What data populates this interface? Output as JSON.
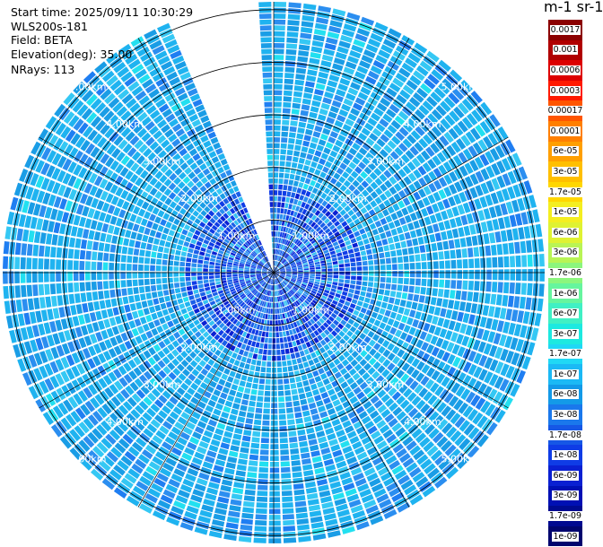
{
  "info": {
    "start_time": "Start time: 2025/09/11 10:30:29",
    "instrument": "WLS200s-181",
    "field": "Field: BETA",
    "elevation": "Elevation(deg): 35.00",
    "nrays": "NRays: 113"
  },
  "colorbar": {
    "title": "m-1 sr-1",
    "levels": [
      {
        "label": "0.0017",
        "color": "#8b0000"
      },
      {
        "label": "0.001",
        "color": "#b00000"
      },
      {
        "label": "0.0006",
        "color": "#dd0000"
      },
      {
        "label": "0.0003",
        "color": "#ff1a00"
      },
      {
        "label": "0.00017",
        "color": "#ff5500"
      },
      {
        "label": "0.0001",
        "color": "#ff7f00"
      },
      {
        "label": "6e-05",
        "color": "#ff9f00"
      },
      {
        "label": "3e-05",
        "color": "#ffbf00"
      },
      {
        "label": "1.7e-05",
        "color": "#ffd700"
      },
      {
        "label": "1e-05",
        "color": "#f4ee20"
      },
      {
        "label": "6e-06",
        "color": "#dff232"
      },
      {
        "label": "3e-06",
        "color": "#b9f455"
      },
      {
        "label": "1.7e-06",
        "color": "#8cf67d"
      },
      {
        "label": "1e-06",
        "color": "#66f59e"
      },
      {
        "label": "6e-07",
        "color": "#40f0c4"
      },
      {
        "label": "3e-07",
        "color": "#1de9e0"
      },
      {
        "label": "1.7e-07",
        "color": "#20d8f5"
      },
      {
        "label": "1e-07",
        "color": "#1bb9f5"
      },
      {
        "label": "6e-08",
        "color": "#139ae8"
      },
      {
        "label": "3e-08",
        "color": "#1a78ec"
      },
      {
        "label": "1.7e-08",
        "color": "#1657e6"
      },
      {
        "label": "1e-08",
        "color": "#0f3ce6"
      },
      {
        "label": "6e-09",
        "color": "#0a20d2"
      },
      {
        "label": "3e-09",
        "color": "#0010b4"
      },
      {
        "label": "1.7e-09",
        "color": "#000a90"
      },
      {
        "label": "1e-09",
        "color": "#00056e"
      }
    ]
  },
  "chart_data": {
    "type": "heatmap",
    "projection": "polar",
    "field": "BETA",
    "elevation_deg": 35.0,
    "nrays": 113,
    "range_rings_km": [
      1,
      2,
      3,
      4,
      5
    ],
    "ring_labels": [
      "1.00km",
      "2.00km",
      "3.00km",
      "4.00km",
      "5.00km"
    ],
    "max_range_km": 5.15,
    "spokes_deg": [
      0,
      30,
      60,
      90,
      120,
      150,
      180,
      210,
      240,
      270,
      300,
      330
    ],
    "gap_sector_deg": [
      337,
      358
    ],
    "typical_value_range": [
      "3e-08",
      "1e-07"
    ]
  }
}
